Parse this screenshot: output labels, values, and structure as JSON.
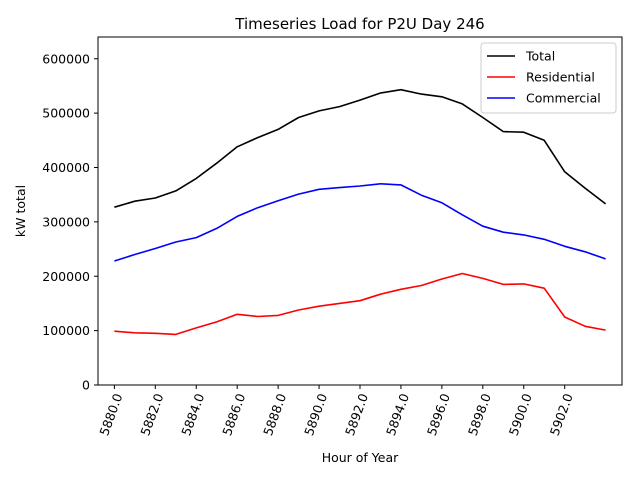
{
  "chart_data": {
    "type": "line",
    "title": "Timeseries Load for P2U   Day 246",
    "xlabel": "Hour of Year",
    "ylabel": "kW total",
    "xlim": [
      5879.2,
      5904.8
    ],
    "ylim": [
      0,
      640000
    ],
    "xticks": [
      5880,
      5882,
      5884,
      5886,
      5888,
      5890,
      5892,
      5894,
      5896,
      5898,
      5900,
      5902
    ],
    "xtick_labels": [
      "5880.0",
      "5882.0",
      "5884.0",
      "5886.0",
      "5888.0",
      "5890.0",
      "5892.0",
      "5894.0",
      "5896.0",
      "5898.0",
      "5900.0",
      "5902.0"
    ],
    "yticks": [
      0,
      100000,
      200000,
      300000,
      400000,
      500000,
      600000
    ],
    "ytick_labels": [
      "0",
      "100000",
      "200000",
      "300000",
      "400000",
      "500000",
      "600000"
    ],
    "grid": false,
    "legend_position": "top-right",
    "x": [
      5880,
      5881,
      5882,
      5883,
      5884,
      5885,
      5886,
      5887,
      5888,
      5889,
      5890,
      5891,
      5892,
      5893,
      5894,
      5895,
      5896,
      5897,
      5898,
      5899,
      5900,
      5901,
      5902,
      5903,
      5904
    ],
    "series": [
      {
        "name": "Total",
        "color": "#000000",
        "values": [
          327000,
          338000,
          344000,
          357000,
          380000,
          408000,
          438000,
          455000,
          470000,
          492000,
          504000,
          512000,
          524000,
          537000,
          543000,
          535000,
          530000,
          517000,
          492000,
          466000,
          465000,
          450000,
          392000,
          362000,
          333000
        ]
      },
      {
        "name": "Residential",
        "color": "#ff0000",
        "values": [
          99000,
          96000,
          95000,
          93000,
          105000,
          116000,
          130000,
          126000,
          128000,
          138000,
          145000,
          150000,
          155000,
          167000,
          176000,
          183000,
          195000,
          205000,
          196000,
          185000,
          186000,
          178000,
          125000,
          108000,
          101000
        ]
      },
      {
        "name": "Commercial",
        "color": "#0000ff",
        "values": [
          228000,
          240000,
          251000,
          263000,
          271000,
          288000,
          310000,
          326000,
          339000,
          351000,
          360000,
          363000,
          366000,
          370000,
          368000,
          349000,
          335000,
          313000,
          292000,
          281000,
          276000,
          268000,
          255000,
          245000,
          232000
        ]
      }
    ]
  }
}
